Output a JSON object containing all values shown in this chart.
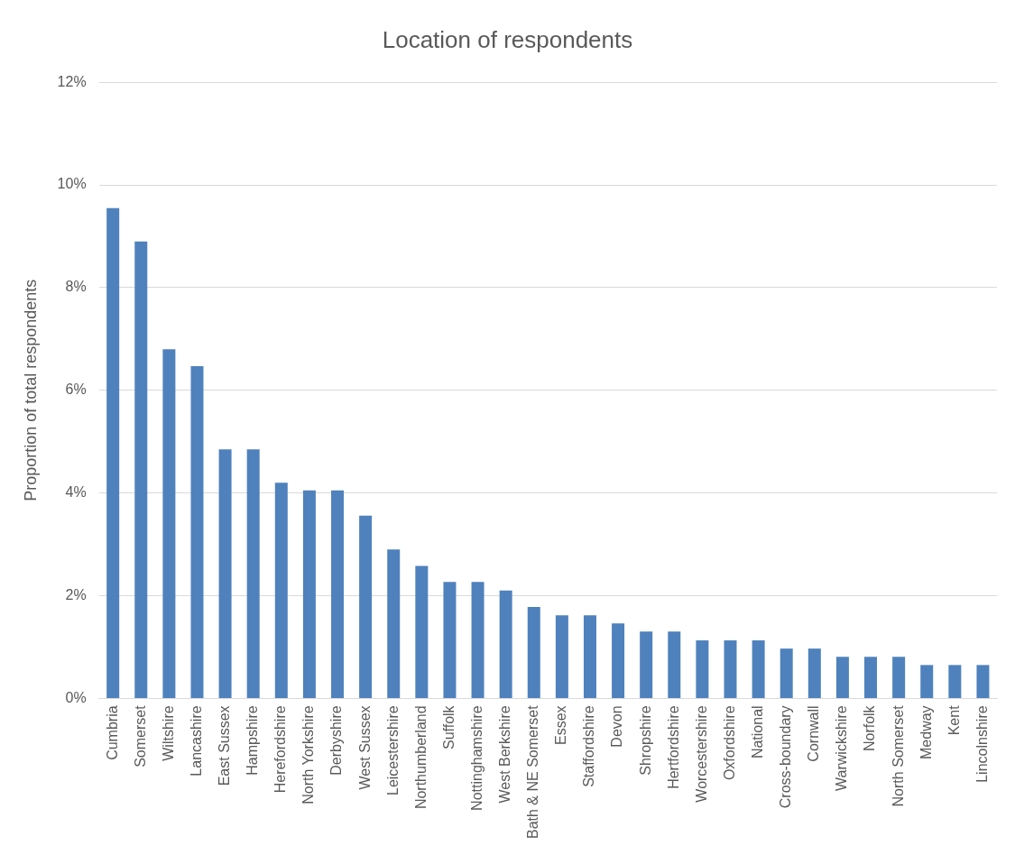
{
  "chart_data": {
    "type": "bar",
    "title": "Location of respondents",
    "ylabel": "Proportion of total respondents",
    "categories": [
      "Cumbria",
      "Somerset",
      "Wiltshire",
      "Lancashire",
      "East Sussex",
      "Hampshire",
      "Herefordshire",
      "North Yorkshire",
      "Derbyshire",
      "West Sussex",
      "Leicestershire",
      "Northumberland",
      "Suffolk",
      "Nottinghamshire",
      "West Berkshire",
      "Bath & NE Somerset",
      "Essex",
      "Staffordshire",
      "Devon",
      "Shropshire",
      "Hertfordshire",
      "Worcestershire",
      "Oxfordshire",
      "National",
      "Cross-boundary",
      "Cornwall",
      "Warwickshire",
      "Norfolk",
      "North Somerset",
      "Medway",
      "Kent",
      "Lincolnshire"
    ],
    "values": [
      9.55,
      8.9,
      6.8,
      6.47,
      4.85,
      4.85,
      4.2,
      4.05,
      4.05,
      3.56,
      2.9,
      2.58,
      2.27,
      2.27,
      2.1,
      1.78,
      1.62,
      1.62,
      1.46,
      1.3,
      1.3,
      1.13,
      1.13,
      1.13,
      0.97,
      0.97,
      0.81,
      0.81,
      0.81,
      0.65,
      0.65,
      0.65
    ],
    "color": "#4f81bd",
    "ylim": [
      0,
      12
    ],
    "yticks": [
      {
        "value": 0,
        "label": "0%"
      },
      {
        "value": 2,
        "label": "2%"
      },
      {
        "value": 4,
        "label": "4%"
      },
      {
        "value": 6,
        "label": "6%"
      },
      {
        "value": 8,
        "label": "8%"
      },
      {
        "value": 10,
        "label": "10%"
      },
      {
        "value": 12,
        "label": "12%"
      }
    ],
    "grid": "y"
  }
}
